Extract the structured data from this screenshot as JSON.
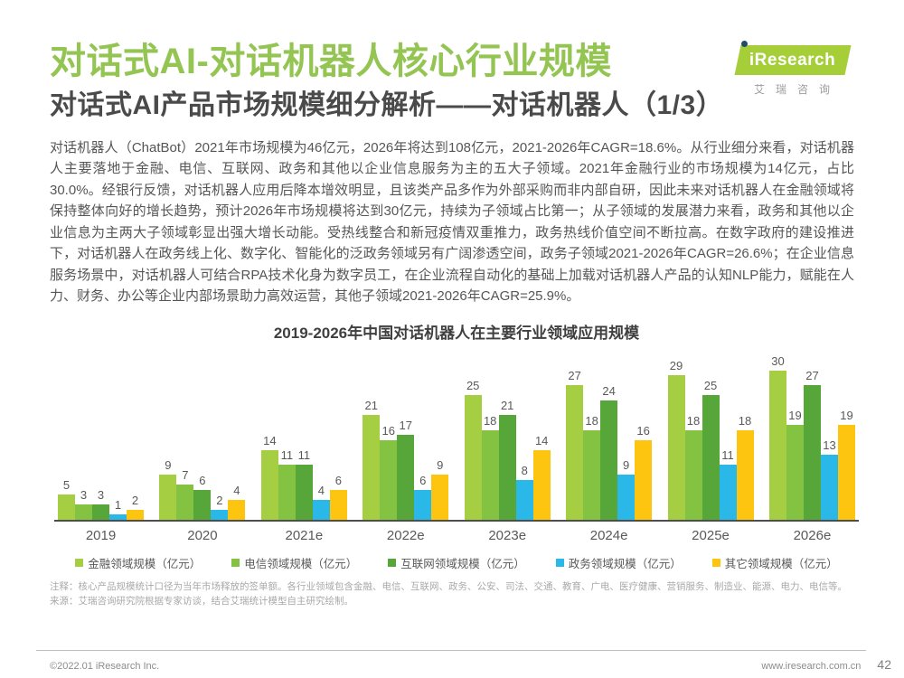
{
  "page": {
    "title": "对话式AI-对话机器人核心行业规模",
    "subtitle": "对话式AI产品市场规模细分解析——对话机器人（1/3）",
    "body": "对话机器人（ChatBot）2021年市场规模为46亿元，2026年将达到108亿元，2021-2026年CAGR=18.6%。从行业细分来看，对话机器人主要落地于金融、电信、互联网、政务和其他以企业信息服务为主的五大子领域。2021年金融行业的市场规模为14亿元，占比30.0%。经银行反馈，对话机器人应用后降本增效明显，且该类产品多作为外部采购而非内部自研，因此未来对话机器人在金融领域将保持整体向好的增长趋势，预计2026年市场规模将达到30亿元，持续为子领域占比第一；从子领域的发展潜力来看，政务和其他以企业信息为主两大子领域彰显出强大增长动能。受热线整合和新冠疫情双重推力，政务热线价值空间不断拉高。在数字政府的建设推进下，对话机器人在政务线上化、数字化、智能化的泛政务领域另有广阔渗透空间，政务子领域2021-2026年CAGR=26.6%；在企业信息服务场景中，对话机器人可结合RPA技术化身为数字员工，在企业流程自动化的基础上加载对话机器人产品的认知NLP能力，赋能在人力、财务、办公等企业内部场景助力高效运营，其他子领域2021-2026年CAGR=25.9%。"
  },
  "logo": {
    "brand": "iResearch",
    "caption": "艾瑞咨询",
    "brand_green": "#A5CE39",
    "dot_navy": "#1d4d68"
  },
  "chart_data": {
    "type": "bar",
    "title": "2019-2026年中国对话机器人在主要行业领域应用规模",
    "categories": [
      "2019",
      "2020",
      "2021e",
      "2022e",
      "2023e",
      "2024e",
      "2025e",
      "2026e"
    ],
    "series": [
      {
        "name": "金融领域规模（亿元）",
        "color": "#A6CE42",
        "values": [
          5,
          9,
          14,
          21,
          25,
          27,
          29,
          30
        ]
      },
      {
        "name": "电信领域规模（亿元）",
        "color": "#84C341",
        "values": [
          3,
          7,
          11,
          16,
          18,
          18,
          18,
          19
        ]
      },
      {
        "name": "互联网领域规模（亿元）",
        "color": "#57A639",
        "values": [
          3,
          6,
          11,
          17,
          21,
          24,
          25,
          27
        ]
      },
      {
        "name": "政务领域规模（亿元）",
        "color": "#29B8E8",
        "values": [
          1,
          2,
          4,
          6,
          8,
          9,
          11,
          13
        ]
      },
      {
        "name": "其它领域规模（亿元）",
        "color": "#FDC50F",
        "values": [
          2,
          4,
          6,
          9,
          14,
          16,
          18,
          19
        ]
      }
    ],
    "ylim": [
      0,
      30
    ],
    "grid": false,
    "legend_position": "bottom",
    "data_labels": true
  },
  "notes": {
    "note1": "注释：核心产品规模统计口径为当年市场释放的签单额。各行业领域包含金融、电信、互联网、政务、公安、司法、交通、教育、广电、医疗健康、营销服务、制造业、能源、电力、电信等。",
    "source": "来源：艾瑞咨询研究院根据专家访谈，结合艾瑞统计模型自主研究绘制。"
  },
  "footer": {
    "copyright": "©2022.01 iResearch Inc.",
    "website": "www.iresearch.com.cn",
    "page_number": "42"
  }
}
